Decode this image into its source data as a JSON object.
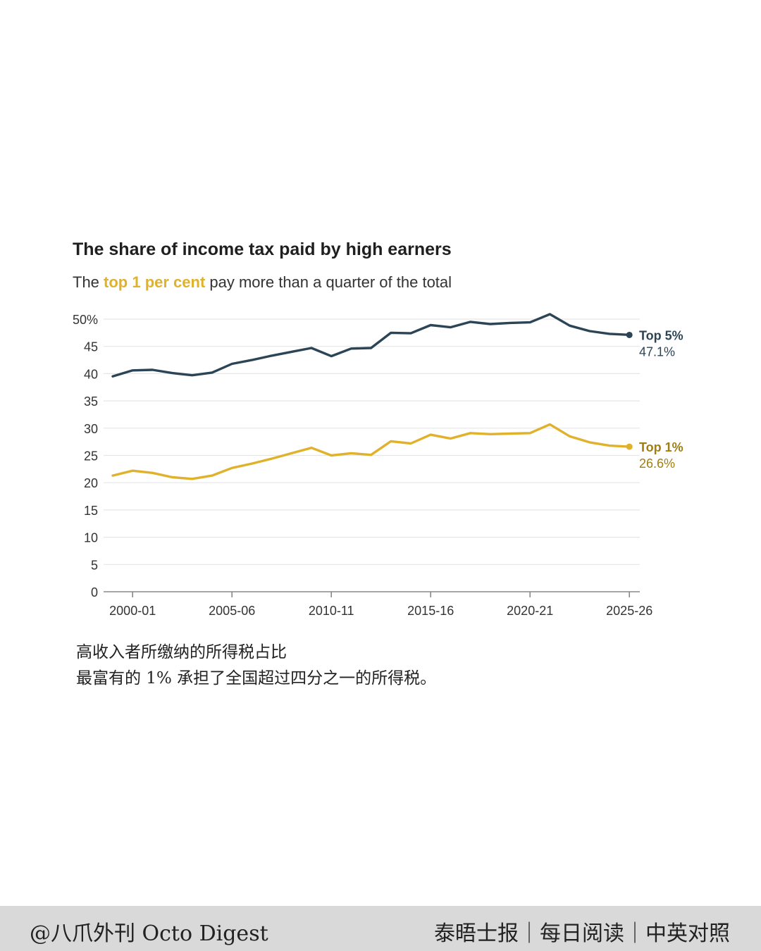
{
  "colors": {
    "top5": "#2b4456",
    "top1": "#e0b22c",
    "top1_label": "#a07e12",
    "grid": "#e6e6e6",
    "axis": "#888888",
    "text": "#333333"
  },
  "chart_data": {
    "type": "line",
    "title": "The share of income tax paid by high earners",
    "subtitle_prefix": "The ",
    "subtitle_highlight": "top 1 per cent",
    "subtitle_suffix": " pay more than a quarter of the total",
    "ylim": [
      0,
      50
    ],
    "y_ticks": [
      0,
      5,
      10,
      15,
      20,
      25,
      30,
      35,
      40,
      45,
      50
    ],
    "y_tick_labels": [
      "0",
      "5",
      "10",
      "15",
      "20",
      "25",
      "30",
      "35",
      "40",
      "45",
      "50%"
    ],
    "x_labels": [
      "2000-01",
      "2005-06",
      "2010-11",
      "2015-16",
      "2020-21",
      "2025-26"
    ],
    "x_label_years": [
      2000,
      2005,
      2010,
      2015,
      2020,
      2025
    ],
    "x_years": [
      1999,
      2000,
      2001,
      2002,
      2003,
      2004,
      2005,
      2006,
      2007,
      2008,
      2009,
      2010,
      2011,
      2012,
      2013,
      2014,
      2015,
      2016,
      2017,
      2018,
      2019,
      2020,
      2021,
      2022,
      2023,
      2024,
      2025
    ],
    "grid": true,
    "legend": "inline-right",
    "series": [
      {
        "name": "Top 5%",
        "end_label": "47.1%",
        "values": [
          39.5,
          40.6,
          40.7,
          40.1,
          39.7,
          40.2,
          41.8,
          42.5,
          43.3,
          44.0,
          44.7,
          43.2,
          44.6,
          44.7,
          47.5,
          47.4,
          48.9,
          48.5,
          49.5,
          49.1,
          49.3,
          49.4,
          50.9,
          48.8,
          47.8,
          47.3,
          47.1
        ]
      },
      {
        "name": "Top 1%",
        "end_label": "26.6%",
        "values": [
          21.3,
          22.2,
          21.8,
          21.0,
          20.7,
          21.3,
          22.7,
          23.5,
          24.4,
          25.4,
          26.4,
          25.0,
          25.4,
          25.1,
          27.6,
          27.2,
          28.8,
          28.1,
          29.1,
          28.9,
          29.0,
          29.1,
          30.7,
          28.5,
          27.4,
          26.8,
          26.6
        ]
      }
    ]
  },
  "caption": {
    "line1": "高收入者所缴纳的所得税占比",
    "line2": "最富有的 1% 承担了全国超过四分之一的所得税。"
  },
  "footer": {
    "left": "@八爪外刊 Octo Digest",
    "right": "泰晤士报｜每日阅读｜中英对照"
  }
}
